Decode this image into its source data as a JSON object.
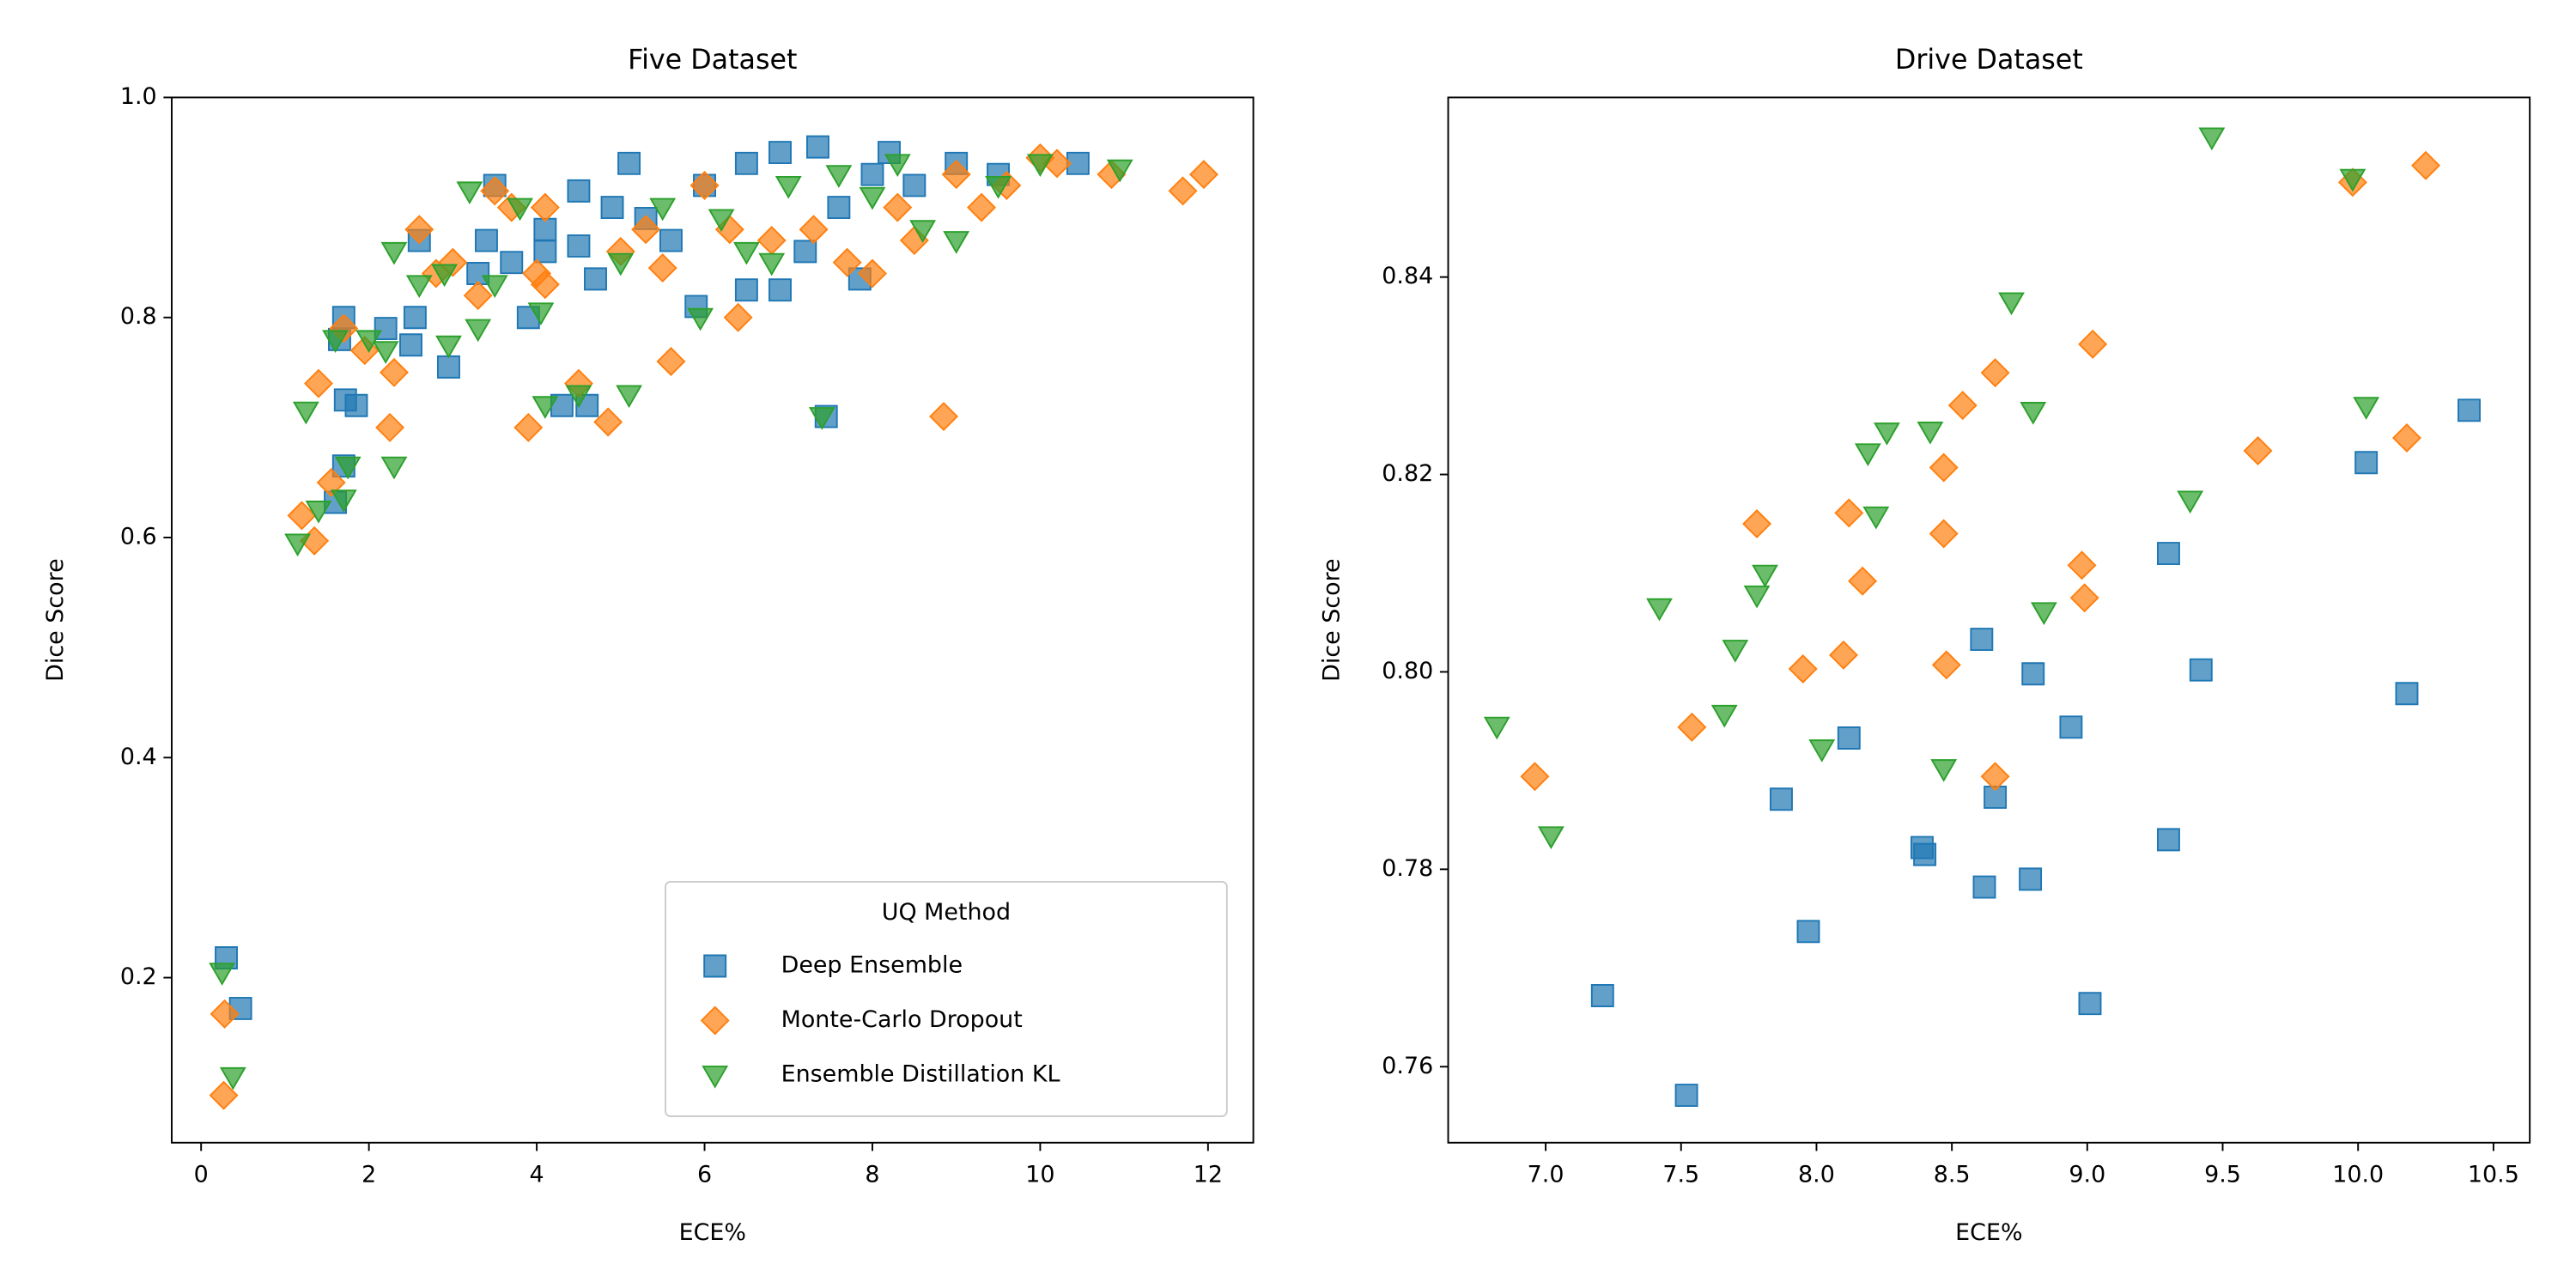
{
  "chart_data": [
    {
      "type": "scatter",
      "title": "Five Dataset",
      "x_label": "ECE%",
      "y_label": "Dice Score",
      "xlim": [
        -0.35,
        12.54
      ],
      "ylim": [
        0.05,
        1.0
      ],
      "xticks": [
        0,
        2,
        4,
        6,
        8,
        10,
        12
      ],
      "yticks": [
        0.2,
        0.4,
        0.6,
        0.8,
        {
          "value": 1.0,
          "label": "1.0"
        }
      ],
      "legend": {
        "title": "UQ Method",
        "position": "lower right"
      },
      "series": [
        {
          "name": "Deep Ensemble",
          "color": "#1f77b4",
          "marker": "square",
          "x": [
            0.3,
            0.47,
            1.6,
            1.65,
            1.7,
            1.72,
            1.7,
            1.85,
            2.2,
            2.5,
            2.55,
            2.6,
            2.95,
            3.3,
            3.4,
            3.5,
            3.7,
            3.9,
            4.1,
            4.1,
            4.3,
            4.5,
            4.5,
            4.6,
            4.7,
            4.9,
            5.1,
            5.3,
            5.6,
            5.9,
            6.0,
            6.5,
            6.5,
            6.9,
            6.9,
            7.2,
            7.35,
            7.45,
            7.6,
            7.85,
            8.0,
            8.2,
            8.5,
            9.0,
            9.5,
            10.45
          ],
          "values": [
            0.218,
            0.172,
            0.632,
            0.78,
            0.8,
            0.725,
            0.665,
            0.72,
            0.79,
            0.775,
            0.8,
            0.87,
            0.755,
            0.84,
            0.87,
            0.92,
            0.85,
            0.8,
            0.88,
            0.86,
            0.72,
            0.915,
            0.865,
            0.72,
            0.835,
            0.9,
            0.94,
            0.89,
            0.87,
            0.81,
            0.92,
            0.825,
            0.94,
            0.825,
            0.95,
            0.86,
            0.955,
            0.71,
            0.9,
            0.835,
            0.93,
            0.95,
            0.92,
            0.94,
            0.93,
            0.94
          ]
        },
        {
          "name": "Monte-Carlo Dropout",
          "color": "#ff7f0e",
          "marker": "diamond",
          "x": [
            0.27,
            0.28,
            1.2,
            1.35,
            1.4,
            1.55,
            1.7,
            1.95,
            2.25,
            2.3,
            2.6,
            2.8,
            3.0,
            3.3,
            3.5,
            3.7,
            3.9,
            4.0,
            4.1,
            4.1,
            4.5,
            4.85,
            5.0,
            5.3,
            5.5,
            5.6,
            6.0,
            6.3,
            6.4,
            6.8,
            7.3,
            7.7,
            8.0,
            8.3,
            8.5,
            8.85,
            9.0,
            9.3,
            9.6,
            10.0,
            10.2,
            10.85,
            11.7,
            11.95
          ],
          "values": [
            0.093,
            0.167,
            0.62,
            0.597,
            0.74,
            0.65,
            0.79,
            0.77,
            0.7,
            0.75,
            0.88,
            0.84,
            0.85,
            0.82,
            0.915,
            0.9,
            0.7,
            0.84,
            0.83,
            0.9,
            0.74,
            0.705,
            0.86,
            0.88,
            0.845,
            0.76,
            0.92,
            0.88,
            0.8,
            0.87,
            0.88,
            0.85,
            0.84,
            0.9,
            0.87,
            0.71,
            0.93,
            0.9,
            0.92,
            0.945,
            0.94,
            0.93,
            0.915,
            0.93
          ]
        },
        {
          "name": "Ensemble Distillation KL",
          "color": "#2ca02c",
          "marker": "triangle-down",
          "x": [
            0.25,
            0.38,
            1.15,
            1.25,
            1.4,
            1.6,
            1.7,
            1.75,
            2.0,
            2.2,
            2.3,
            2.3,
            2.6,
            2.9,
            2.95,
            3.2,
            3.3,
            3.5,
            3.8,
            4.05,
            4.1,
            4.5,
            5.0,
            5.1,
            5.5,
            5.95,
            6.2,
            6.5,
            6.8,
            7.0,
            7.4,
            7.6,
            8.0,
            8.3,
            8.6,
            9.0,
            9.5,
            10.0,
            10.95
          ],
          "values": [
            0.205,
            0.11,
            0.595,
            0.715,
            0.625,
            0.78,
            0.635,
            0.665,
            0.78,
            0.77,
            0.665,
            0.86,
            0.83,
            0.84,
            0.775,
            0.915,
            0.79,
            0.83,
            0.9,
            0.805,
            0.72,
            0.73,
            0.85,
            0.73,
            0.9,
            0.8,
            0.89,
            0.86,
            0.85,
            0.92,
            0.71,
            0.93,
            0.91,
            0.94,
            0.88,
            0.87,
            0.92,
            0.94,
            0.935
          ]
        }
      ]
    },
    {
      "type": "scatter",
      "title": "Drive Dataset",
      "x_label": "ECE%",
      "y_label": "Dice Score",
      "xlim": [
        6.64,
        10.634
      ],
      "ylim": [
        0.7523,
        0.8582
      ],
      "xticks": [
        {
          "value": 7.0,
          "label": "7.0"
        },
        7.5,
        {
          "value": 8.0,
          "label": "8.0"
        },
        8.5,
        {
          "value": 9.0,
          "label": "9.0"
        },
        9.5,
        {
          "value": 10.0,
          "label": "10.0"
        },
        10.5
      ],
      "yticks": [
        0.76,
        0.78,
        {
          "value": 0.8,
          "label": "0.80"
        },
        0.82,
        0.84
      ],
      "series": [
        {
          "color": "#1f77b4",
          "marker": "square",
          "x": [
            7.21,
            7.52,
            7.87,
            7.97,
            8.12,
            8.39,
            8.4,
            8.62,
            8.79,
            8.66,
            8.61,
            8.8,
            8.94,
            9.01,
            9.3,
            9.3,
            9.42,
            10.18,
            10.03,
            10.41
          ],
          "values": [
            0.7672,
            0.7571,
            0.7871,
            0.7737,
            0.7933,
            0.7822,
            0.7815,
            0.7782,
            0.779,
            0.7873,
            0.8033,
            0.7998,
            0.7944,
            0.7664,
            0.812,
            0.783,
            0.8002,
            0.7978,
            0.8212,
            0.8265
          ]
        },
        {
          "color": "#ff7f0e",
          "marker": "diamond",
          "x": [
            6.96,
            7.54,
            7.78,
            7.95,
            8.1,
            8.12,
            8.17,
            8.47,
            8.47,
            8.48,
            8.54,
            8.66,
            8.66,
            8.98,
            8.99,
            9.02,
            9.63,
            9.98,
            10.18,
            10.25
          ],
          "values": [
            0.7894,
            0.7944,
            0.815,
            0.8003,
            0.8017,
            0.8161,
            0.8092,
            0.8207,
            0.814,
            0.8007,
            0.827,
            0.8303,
            0.7894,
            0.8108,
            0.8075,
            0.8332,
            0.8224,
            0.8496,
            0.8237,
            0.8513
          ]
        },
        {
          "color": "#2ca02c",
          "marker": "triangle-down",
          "x": [
            6.82,
            7.02,
            7.42,
            7.66,
            7.7,
            7.78,
            7.81,
            8.02,
            8.19,
            8.22,
            8.26,
            8.42,
            8.47,
            8.72,
            8.8,
            8.84,
            9.38,
            9.46,
            9.98,
            10.03
          ],
          "values": [
            0.7945,
            0.7834,
            0.8065,
            0.7957,
            0.8023,
            0.8078,
            0.8099,
            0.7922,
            0.8222,
            0.8158,
            0.8243,
            0.8244,
            0.7902,
            0.8375,
            0.8264,
            0.8061,
            0.8174,
            0.8542,
            0.85,
            0.8269
          ]
        }
      ]
    }
  ]
}
